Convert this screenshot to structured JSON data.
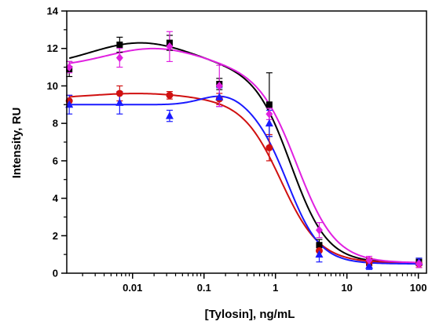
{
  "chart_data": {
    "type": "line",
    "xlabel": "[Tylosin], ng/mL",
    "ylabel": "Intensity, RU",
    "x_scale": "log",
    "xlim": [
      0.0012,
      130
    ],
    "ylim": [
      0,
      14
    ],
    "x_ticks": [
      {
        "value": 0.01,
        "label": "0.01"
      },
      {
        "value": 0.1,
        "label": "0.1"
      },
      {
        "value": 1,
        "label": "1"
      },
      {
        "value": 10,
        "label": "10"
      },
      {
        "value": 100,
        "label": "100"
      }
    ],
    "y_ticks": [
      0,
      2,
      4,
      6,
      8,
      10,
      12,
      14
    ],
    "x_minor_ticks": [
      0.002,
      0.003,
      0.004,
      0.005,
      0.006,
      0.007,
      0.008,
      0.009,
      0.02,
      0.03,
      0.04,
      0.05,
      0.06,
      0.07,
      0.08,
      0.09,
      0.2,
      0.3,
      0.4,
      0.5,
      0.6,
      0.7,
      0.8,
      0.9,
      2,
      3,
      4,
      5,
      6,
      7,
      8,
      9,
      20,
      30,
      40,
      50,
      60,
      70,
      80,
      90
    ],
    "grid": false,
    "series": [
      {
        "color": "#000000",
        "marker": "square",
        "x": [
          0.0013,
          0.0066,
          0.033,
          0.164,
          0.82,
          4.1,
          20.5,
          102
        ],
        "y": [
          10.9,
          12.2,
          12.3,
          10.1,
          9.0,
          1.5,
          0.6,
          0.6
        ],
        "err": [
          0.4,
          0.4,
          0.4,
          0.3,
          1.7,
          0.3,
          0.2,
          0.2
        ],
        "fit": {
          "A1": 11.0,
          "A2": 0.55,
          "bump": 1.3,
          "bump_center": 0.013,
          "bump_width": 1.0,
          "x0": 1.65,
          "p": 1.7
        }
      },
      {
        "color": "#d01010",
        "marker": "circle",
        "x": [
          0.0013,
          0.0066,
          0.033,
          0.164,
          0.82,
          4.1,
          20.5,
          102
        ],
        "y": [
          9.2,
          9.6,
          9.5,
          9.3,
          6.7,
          1.2,
          0.6,
          0.5
        ],
        "err": [
          0.3,
          0.4,
          0.2,
          0.3,
          0.7,
          0.3,
          0.2,
          0.2
        ],
        "fit": {
          "A1": 9.3,
          "A2": 0.55,
          "bump": 0.3,
          "bump_center": 0.012,
          "bump_width": 1.0,
          "x0": 1.2,
          "p": 1.6
        }
      },
      {
        "color": "#1a1aff",
        "marker": "triangle",
        "x": [
          0.0013,
          0.0066,
          0.033,
          0.164,
          0.82,
          4.1,
          20.5,
          102
        ],
        "y": [
          9.0,
          9.1,
          8.4,
          9.4,
          8.0,
          1.0,
          0.4,
          0.6
        ],
        "err": [
          0.5,
          0.6,
          0.3,
          0.5,
          0.7,
          0.4,
          0.2,
          0.2
        ],
        "fit": {
          "A1": 9.0,
          "A2": 0.5,
          "bump": 0.6,
          "bump_center": 0.2,
          "bump_width": 0.45,
          "x0": 1.5,
          "p": 1.9
        }
      },
      {
        "color": "#e020e0",
        "marker": "diamond",
        "x": [
          0.0013,
          0.0066,
          0.033,
          0.164,
          0.82,
          4.1,
          20.5,
          102
        ],
        "y": [
          11.0,
          11.5,
          12.1,
          10.0,
          8.5,
          2.3,
          0.7,
          0.5
        ],
        "err": [
          0.3,
          0.5,
          0.8,
          1.1,
          0.3,
          0.4,
          0.2,
          0.2
        ],
        "fit": {
          "A1": 11.0,
          "A2": 0.55,
          "bump": 1.0,
          "bump_center": 0.02,
          "bump_width": 0.95,
          "x0": 2.0,
          "p": 1.6
        }
      }
    ]
  }
}
